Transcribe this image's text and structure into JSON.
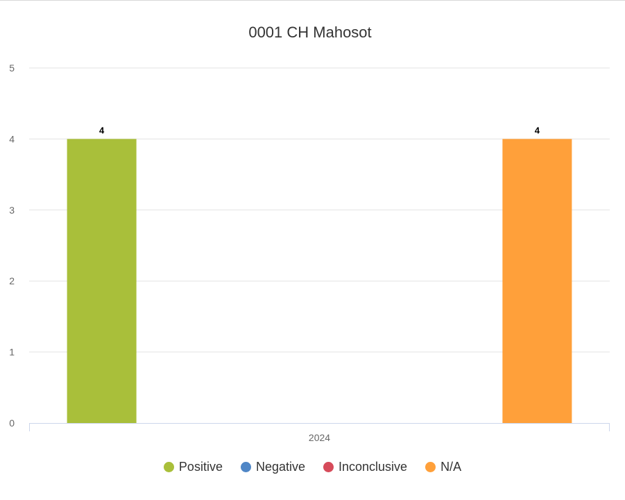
{
  "chart_data": {
    "type": "bar",
    "title": "0001 CH Mahosot",
    "categories": [
      "2024"
    ],
    "series": [
      {
        "name": "Positive",
        "color": "#a9bf3a",
        "values": [
          4
        ]
      },
      {
        "name": "Negative",
        "color": "#4f86c6",
        "values": [
          0
        ]
      },
      {
        "name": "Inconclusive",
        "color": "#d64b5a",
        "values": [
          0
        ]
      },
      {
        "name": "N/A",
        "color": "#ffa03a",
        "values": [
          4
        ]
      }
    ],
    "ylim": [
      0,
      5
    ],
    "yticks": [
      0,
      1,
      2,
      3,
      4,
      5
    ],
    "xlabel": "",
    "ylabel": "",
    "grid": true,
    "legend_position": "bottom",
    "data_labels": true
  }
}
